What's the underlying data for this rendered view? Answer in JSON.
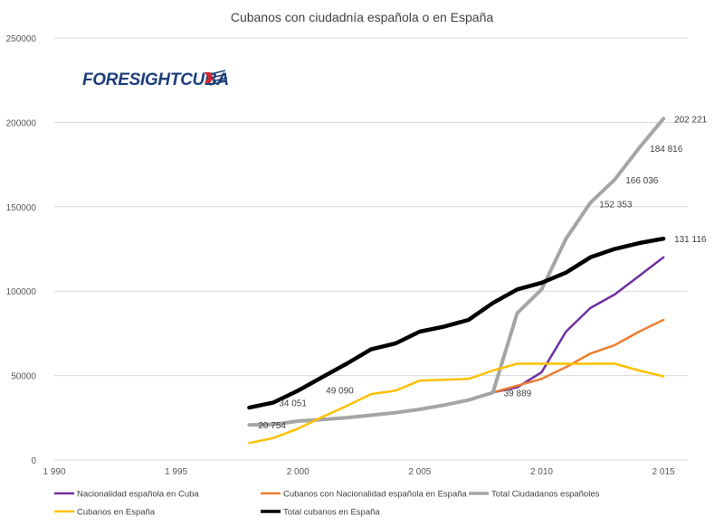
{
  "chart_data": {
    "type": "line",
    "title": "Cubanos con ciudadnía española o en España",
    "xlabel": "",
    "ylabel": "",
    "xlim": [
      1990,
      2016
    ],
    "ylim": [
      0,
      250000
    ],
    "x_tick_labels": [
      "1 990",
      "1 995",
      "2 000",
      "2 005",
      "2 010",
      "2 015"
    ],
    "x_tick_values": [
      1990,
      1995,
      2000,
      2005,
      2010,
      2015
    ],
    "y_tick_labels": [
      "0",
      "50000",
      "100000",
      "150000",
      "200000",
      "250000"
    ],
    "y_tick_values": [
      0,
      50000,
      100000,
      150000,
      200000,
      250000
    ],
    "grid": "horizontal",
    "legend_position": "bottom",
    "series": [
      {
        "name": "Nacionalidad española en Cuba",
        "color": "#7030a0",
        "width": 2.5,
        "x": [
          2008,
          2009,
          2010,
          2011,
          2012,
          2013,
          2014,
          2015
        ],
        "y": [
          40000,
          43000,
          52000,
          76000,
          90000,
          98000,
          109000,
          120000
        ]
      },
      {
        "name": "Cubanos con Nacionalidad española en España",
        "color": "#ed7d31",
        "width": 2.5,
        "x": [
          2008,
          2009,
          2010,
          2011,
          2012,
          2013,
          2014,
          2015
        ],
        "y": [
          40000,
          44000,
          48000,
          55000,
          63000,
          68000,
          76000,
          83000
        ]
      },
      {
        "name": "Total Ciudadanos españoles",
        "color": "#a5a5a5",
        "width": 4,
        "x": [
          1998,
          1999,
          2000,
          2001,
          2002,
          2003,
          2004,
          2005,
          2006,
          2007,
          2008,
          2009,
          2010,
          2011,
          2012,
          2013,
          2014,
          2015
        ],
        "y": [
          20754,
          21000,
          23000,
          24000,
          25000,
          26500,
          28000,
          30000,
          32500,
          35500,
          39889,
          87000,
          101000,
          131000,
          152353,
          166036,
          184816,
          202221
        ]
      },
      {
        "name": "Cubanos en España",
        "color": "#ffc000",
        "width": 2.5,
        "x": [
          1998,
          1999,
          2000,
          2001,
          2002,
          2003,
          2004,
          2005,
          2006,
          2007,
          2008,
          2009,
          2010,
          2011,
          2012,
          2013,
          2014,
          2015
        ],
        "y": [
          10000,
          13000,
          18500,
          25500,
          32000,
          39000,
          41000,
          47000,
          47500,
          48000,
          53000,
          57000,
          57000,
          57000,
          57000,
          57000,
          53000,
          49500
        ]
      },
      {
        "name": "Total cubanos en España",
        "color": "#000000",
        "width": 4.5,
        "x": [
          1998,
          1999,
          2000,
          2001,
          2002,
          2003,
          2004,
          2005,
          2006,
          2007,
          2008,
          2009,
          2010,
          2011,
          2012,
          2013,
          2014,
          2015
        ],
        "y": [
          31000,
          34051,
          41000,
          49090,
          57000,
          65500,
          69000,
          76000,
          79000,
          83000,
          93000,
          101000,
          105000,
          111000,
          120000,
          125000,
          128500,
          131116
        ]
      }
    ],
    "data_labels": [
      {
        "text": "20 754",
        "x": 1998,
        "y": 20754,
        "dx": 10,
        "dy": 4
      },
      {
        "text": "34 051",
        "x": 1999,
        "y": 34051,
        "dx": 6,
        "dy": 4
      },
      {
        "text": "49 090",
        "x": 2001,
        "y": 49090,
        "dx": 4,
        "dy": 18
      },
      {
        "text": "39 889",
        "x": 2008,
        "y": 39889,
        "dx": 12,
        "dy": 4
      },
      {
        "text": "152 353",
        "x": 2012,
        "y": 152353,
        "dx": 10,
        "dy": 5
      },
      {
        "text": "166 036",
        "x": 2013,
        "y": 166036,
        "dx": 12,
        "dy": 4
      },
      {
        "text": "184 816",
        "x": 2014,
        "y": 184816,
        "dx": 12,
        "dy": 4
      },
      {
        "text": "202 221",
        "x": 2015,
        "y": 202221,
        "dx": 12,
        "dy": 4
      },
      {
        "text": "131 116",
        "x": 2015,
        "y": 131116,
        "dx": 12,
        "dy": 4
      }
    ]
  },
  "logo": {
    "brand": "FORESIGHTCUBA",
    "colors": {
      "text": "#1f3f7a",
      "flag_red": "#d0282e",
      "flag_blue": "#1f3f7a"
    }
  }
}
